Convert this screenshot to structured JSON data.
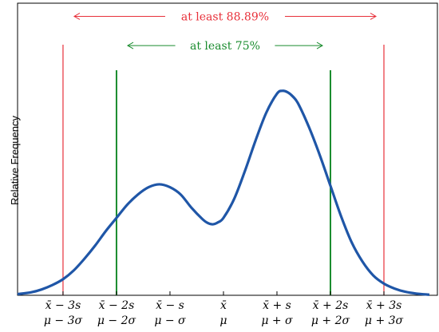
{
  "chart_data": {
    "type": "line",
    "title": "",
    "xlabel": "",
    "ylabel": "Relative Frequency",
    "xlim": [
      -3.85,
      4.0
    ],
    "ylim": [
      0,
      1.0
    ],
    "grid": false,
    "ticks": [
      {
        "x": -3,
        "top": "x̄ − 3s",
        "bottom": "μ − 3σ"
      },
      {
        "x": -2,
        "top": "x̄ − 2s",
        "bottom": "μ − 2σ"
      },
      {
        "x": -1,
        "top": "x̄ − s",
        "bottom": "μ − σ"
      },
      {
        "x": 0,
        "top": "x̄",
        "bottom": "μ"
      },
      {
        "x": 1,
        "top": "x̄ + s",
        "bottom": "μ + σ"
      },
      {
        "x": 2,
        "top": "x̄ + 2s",
        "bottom": "μ + 2σ"
      },
      {
        "x": 3,
        "top": "x̄ + 3s",
        "bottom": "μ + 3σ"
      }
    ],
    "series": [
      {
        "color": "#1f56a7",
        "x": [
          -3.85,
          -3.6,
          -3.4,
          -3.2,
          -3.0,
          -2.8,
          -2.6,
          -2.4,
          -2.2,
          -2.0,
          -1.8,
          -1.6,
          -1.4,
          -1.2,
          -1.0,
          -0.8,
          -0.6,
          -0.4,
          -0.3,
          -0.2,
          -0.1,
          0.0,
          0.2,
          0.4,
          0.6,
          0.8,
          1.0,
          1.1,
          1.2,
          1.3,
          1.4,
          1.6,
          1.8,
          2.0,
          2.2,
          2.4,
          2.6,
          2.8,
          3.0,
          3.2,
          3.4,
          3.6,
          3.85
        ],
        "y": [
          0.004,
          0.01,
          0.02,
          0.035,
          0.055,
          0.085,
          0.125,
          0.17,
          0.22,
          0.265,
          0.31,
          0.345,
          0.37,
          0.38,
          0.37,
          0.345,
          0.3,
          0.262,
          0.248,
          0.243,
          0.25,
          0.265,
          0.33,
          0.425,
          0.53,
          0.625,
          0.69,
          0.7,
          0.695,
          0.68,
          0.655,
          0.575,
          0.48,
          0.375,
          0.27,
          0.18,
          0.115,
          0.068,
          0.04,
          0.023,
          0.012,
          0.006,
          0.002
        ]
      }
    ],
    "vlines": [
      {
        "x": -3,
        "color": "#e8303a"
      },
      {
        "x": 3,
        "color": "#e8303a"
      },
      {
        "x": -2,
        "color": "#1a8c2e"
      },
      {
        "x": 2,
        "color": "#1a8c2e"
      }
    ],
    "annotations": [
      {
        "text": "at least 88.89%",
        "x_from": -3,
        "x_to": 3,
        "y": 0.955,
        "color": "#e8303a"
      },
      {
        "text": "at least 75%",
        "x_from": -2,
        "x_to": 2,
        "y": 0.855,
        "color": "#1a8c2e"
      }
    ]
  }
}
